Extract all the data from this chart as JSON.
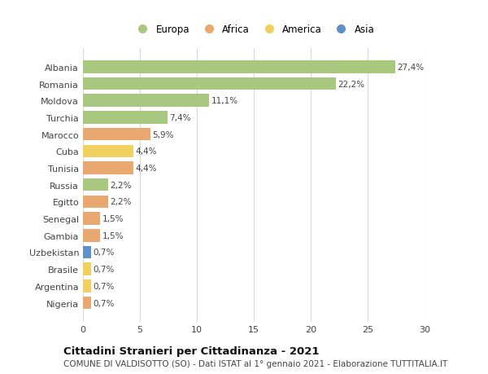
{
  "countries": [
    "Albania",
    "Romania",
    "Moldova",
    "Turchia",
    "Marocco",
    "Cuba",
    "Tunisia",
    "Russia",
    "Egitto",
    "Senegal",
    "Gambia",
    "Uzbekistan",
    "Brasile",
    "Argentina",
    "Nigeria"
  ],
  "values": [
    27.4,
    22.2,
    11.1,
    7.4,
    5.9,
    4.4,
    4.4,
    2.2,
    2.2,
    1.5,
    1.5,
    0.7,
    0.7,
    0.7,
    0.7
  ],
  "labels": [
    "27,4%",
    "22,2%",
    "11,1%",
    "7,4%",
    "5,9%",
    "4,4%",
    "4,4%",
    "2,2%",
    "2,2%",
    "1,5%",
    "1,5%",
    "0,7%",
    "0,7%",
    "0,7%",
    "0,7%"
  ],
  "continent": [
    "Europa",
    "Europa",
    "Europa",
    "Europa",
    "Africa",
    "America",
    "Africa",
    "Europa",
    "Africa",
    "Africa",
    "Africa",
    "Asia",
    "America",
    "America",
    "Africa"
  ],
  "colors": {
    "Europa": "#a8c880",
    "Africa": "#e8a870",
    "America": "#f0d060",
    "Asia": "#6090c8"
  },
  "legend_order": [
    "Europa",
    "Africa",
    "America",
    "Asia"
  ],
  "title": "Cittadini Stranieri per Cittadinanza - 2021",
  "subtitle": "COMUNE DI VALDISOTTO (SO) - Dati ISTAT al 1° gennaio 2021 - Elaborazione TUTTITALIA.IT",
  "xlim": [
    0,
    30
  ],
  "xticks": [
    0,
    5,
    10,
    15,
    20,
    25,
    30
  ],
  "bg_color": "#ffffff",
  "grid_color": "#d8d8d8",
  "bar_height": 0.75,
  "label_fontsize": 7.5,
  "ytick_fontsize": 8.0,
  "xtick_fontsize": 8.0,
  "legend_fontsize": 8.5,
  "title_fontsize": 9.5,
  "subtitle_fontsize": 7.5
}
